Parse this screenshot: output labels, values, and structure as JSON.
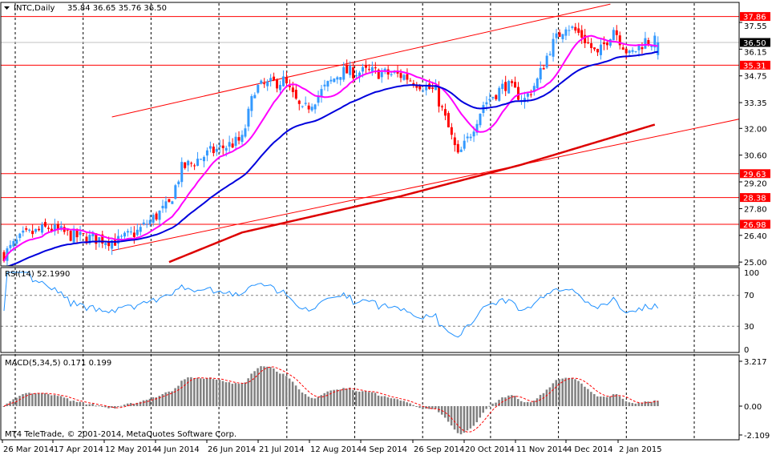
{
  "header": {
    "symbol_label": "INTC,Daily",
    "ohlc": "35.84 36.65 35.76 36.50"
  },
  "footer": {
    "copyright": "MT4 TeleTrade, © 2001-2014, MetaQuotes Software Corp."
  },
  "colors": {
    "bull": "#3399ff",
    "bear": "#ff0000",
    "ma_fast": "#ff00ff",
    "ma_mid": "#0000dd",
    "ma_slow": "#dd0000",
    "hline": "#ff0000",
    "rsi": "#1e90ff",
    "macd_hist": "#808080",
    "macd_signal": "#ff0000"
  },
  "chart_data": [
    {
      "type": "candlestick",
      "title": "INTC,Daily",
      "ylim": [
        25.0,
        38.51
      ],
      "price_ticks": [
        "37.55",
        "36.15",
        "34.75",
        "33.35",
        "32.00",
        "30.60",
        "29.20",
        "27.80",
        "26.40",
        "25.00"
      ],
      "date_ticks": [
        "26 Mar 2014",
        "17 Apr 2014",
        "12 May 2014",
        "4 Jun 2014",
        "26 Jun 2014",
        "21 Jul 2014",
        "12 Aug 2014",
        "4 Sep 2014",
        "26 Sep 2014",
        "20 Oct 2014",
        "11 Nov 2014",
        "4 Dec 2014",
        "2 Jan 2015"
      ],
      "bar_count": 207,
      "close_path": [
        [
          0,
          25.4
        ],
        [
          6,
          26.35
        ],
        [
          14,
          26.8
        ],
        [
          22,
          26.35
        ],
        [
          36,
          26.1
        ],
        [
          42,
          26.6
        ],
        [
          52,
          28.0
        ],
        [
          56,
          29.9
        ],
        [
          65,
          30.75
        ],
        [
          75,
          31.4
        ],
        [
          79,
          34.1
        ],
        [
          88,
          34.5
        ],
        [
          94,
          32.85
        ],
        [
          101,
          34.1
        ],
        [
          106,
          34.95
        ],
        [
          116,
          34.95
        ],
        [
          126,
          34.75
        ],
        [
          136,
          33.9
        ],
        [
          140,
          32.0
        ],
        [
          143,
          30.5
        ],
        [
          146,
          31.4
        ],
        [
          151,
          33.27
        ],
        [
          158,
          34.3
        ],
        [
          164,
          33.5
        ],
        [
          168,
          34.5
        ],
        [
          172,
          36.2
        ],
        [
          177,
          37.45
        ],
        [
          182,
          36.85
        ],
        [
          187,
          35.8
        ],
        [
          192,
          37.25
        ],
        [
          197,
          35.8
        ],
        [
          202,
          36.6
        ],
        [
          206,
          36.5
        ]
      ],
      "ma_slow_path": [
        [
          52,
          25.0
        ],
        [
          75,
          26.55
        ],
        [
          125,
          28.45
        ],
        [
          163,
          30.1
        ],
        [
          205,
          32.2
        ]
      ],
      "horizontal_levels": [
        {
          "price": 37.86,
          "label": "37.86"
        },
        {
          "price": 35.31,
          "label": "35.31"
        },
        {
          "price": 29.63,
          "label": "29.63"
        },
        {
          "price": 28.38,
          "label": "28.38"
        },
        {
          "price": 26.98,
          "label": "26.98"
        }
      ],
      "bid": {
        "price": 36.5,
        "label": "36.50"
      },
      "trendlines": [
        {
          "name": "channel-upper",
          "from": [
            34,
            32.6
          ],
          "to": [
            191,
            38.51
          ]
        },
        {
          "name": "channel-lower",
          "from": [
            34,
            25.6
          ],
          "to": [
            242,
            32.85
          ]
        }
      ]
    },
    {
      "type": "line",
      "title": "RSI(14) 52.1990",
      "ylim": [
        0,
        100
      ],
      "ticks": [
        "100",
        "70",
        "30",
        "0"
      ],
      "levels": [
        70,
        30
      ]
    },
    {
      "type": "bar",
      "title": "MACD(5,34,5) 0.171 0.199",
      "ylim": [
        -2.109,
        3.217
      ],
      "ticks": [
        "3.217",
        "0.00",
        "-2.109"
      ]
    }
  ]
}
